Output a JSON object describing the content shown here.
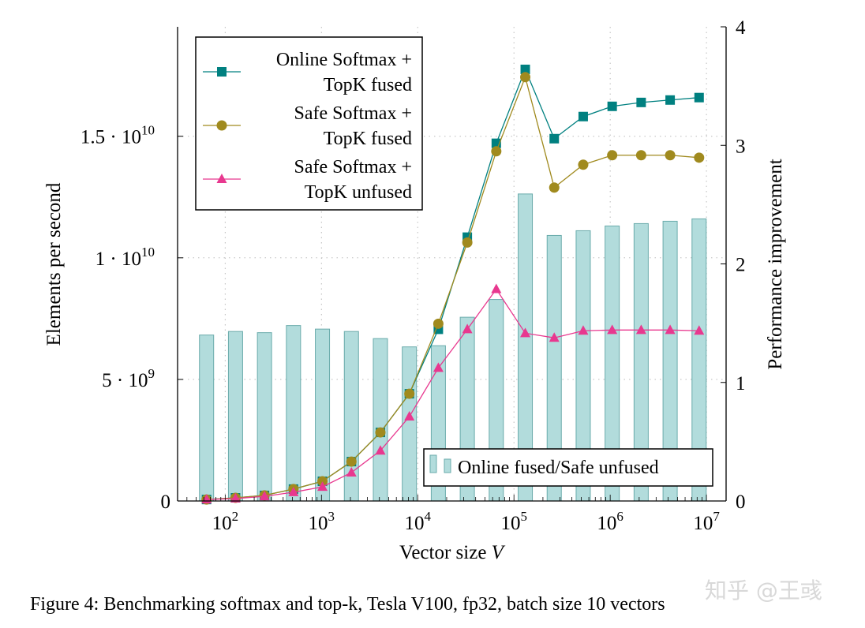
{
  "chart_data": {
    "type": "bar+line",
    "caption": "Figure 4: Benchmarking softmax and top-k, Tesla V100, fp32, batch size 10 vectors",
    "xlabel": "Vector size",
    "xlabel_var": "V",
    "ylabel_left": "Elements per second",
    "ylabel_right": "Performance improvement",
    "x_scale": "log",
    "xlim": [
      32,
      16000000
    ],
    "ylim_left": [
      0,
      19500000000
    ],
    "ylim_right": [
      0,
      4
    ],
    "grid": true,
    "x_ticks": [
      {
        "base": "10",
        "exp": "2",
        "value": 100
      },
      {
        "base": "10",
        "exp": "3",
        "value": 1000
      },
      {
        "base": "10",
        "exp": "4",
        "value": 10000
      },
      {
        "base": "10",
        "exp": "5",
        "value": 100000
      },
      {
        "base": "10",
        "exp": "6",
        "value": 1000000
      },
      {
        "base": "10",
        "exp": "7",
        "value": 10000000
      }
    ],
    "y_left_ticks": [
      {
        "mant": "0",
        "exp": "",
        "value": 0
      },
      {
        "mant": "5 · 10",
        "exp": "9",
        "value": 5000000000
      },
      {
        "mant": "1 · 10",
        "exp": "10",
        "value": 10000000000
      },
      {
        "mant": "1.5 · 10",
        "exp": "10",
        "value": 15000000000
      }
    ],
    "y_right_ticks": [
      "0",
      "1",
      "2",
      "3",
      "4"
    ],
    "x": [
      64,
      128,
      256,
      512,
      1024,
      2048,
      4096,
      8192,
      16384,
      32768,
      65536,
      131072,
      262144,
      524288,
      1048576,
      2097152,
      4194304,
      8388608
    ],
    "series": [
      {
        "name": "Online Softmax + TopK fused",
        "legend_lines": [
          "Online Softmax +",
          "TopK fused"
        ],
        "axis": "left",
        "marker": "square",
        "color": "#008080",
        "values": [
          60000000.0,
          130000000.0,
          230000000.0,
          490000000.0,
          810000000.0,
          1620000000.0,
          2820000000.0,
          4410000000.0,
          7060000000.0,
          10850000000.0,
          14710000000.0,
          17750000000.0,
          14900000000.0,
          15810000000.0,
          16230000000.0,
          16390000000.0,
          16490000000.0,
          16590000000.0
        ]
      },
      {
        "name": "Safe Softmax + TopK fused",
        "legend_lines": [
          "Safe Softmax +",
          "TopK fused"
        ],
        "axis": "left",
        "marker": "circle",
        "color": "#a08a1e",
        "values": [
          60000000.0,
          130000000.0,
          230000000.0,
          490000000.0,
          810000000.0,
          1620000000.0,
          2820000000.0,
          4410000000.0,
          7290000000.0,
          10630000000.0,
          14380000000.0,
          17430000000.0,
          12890000000.0,
          13830000000.0,
          14220000000.0,
          14220000000.0,
          14220000000.0,
          14120000000.0
        ]
      },
      {
        "name": "Safe Softmax + TopK unfused",
        "legend_lines": [
          "Safe Softmax +",
          "TopK unfused"
        ],
        "axis": "left",
        "marker": "triangle",
        "color": "#e8388f",
        "values": [
          60000000.0,
          100000000.0,
          190000000.0,
          360000000.0,
          580000000.0,
          1170000000.0,
          2070000000.0,
          3470000000.0,
          5470000000.0,
          7060000000.0,
          8710000000.0,
          6900000000.0,
          6710000000.0,
          7000000000.0,
          7030000000.0,
          7030000000.0,
          7030000000.0,
          7000000000.0
        ]
      },
      {
        "name": "Online fused/Safe unfused",
        "axis": "right",
        "marker": "bar",
        "color": "#b2dcdc",
        "edge": "#6aabab",
        "values": [
          1.4,
          1.43,
          1.42,
          1.48,
          1.45,
          1.43,
          1.37,
          1.3,
          1.31,
          1.55,
          1.7,
          2.59,
          2.24,
          2.28,
          2.32,
          2.34,
          2.36,
          2.38
        ]
      }
    ],
    "legend_placement": "top-left (lines), bottom-right (bars)"
  },
  "watermark": "知乎 @王彧"
}
